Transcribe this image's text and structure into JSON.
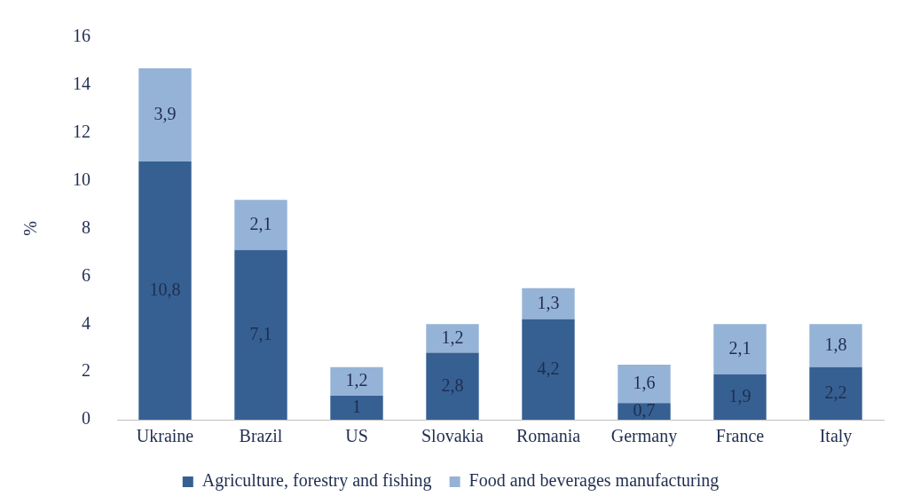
{
  "chart_data": {
    "type": "bar",
    "stacked": true,
    "ylabel": "%",
    "categories": [
      "Ukraine",
      "Brazil",
      "US",
      "Slovakia",
      "Romania",
      "Germany",
      "France",
      "Italy"
    ],
    "series": [
      {
        "name": "Agriculture, forestry and fishing",
        "color": "#366092",
        "values": [
          10.8,
          7.1,
          1,
          2.8,
          4.2,
          0.7,
          1.9,
          2.2
        ],
        "value_labels": [
          "10,8",
          "7,1",
          "1",
          "2,8",
          "4,2",
          "0,7",
          "1,9",
          "2,2"
        ]
      },
      {
        "name": "Food and beverages manufacturing",
        "color": "#95b3d7",
        "values": [
          3.9,
          2.1,
          1.2,
          1.2,
          1.3,
          1.6,
          2.1,
          1.8
        ],
        "value_labels": [
          "3,9",
          "2,1",
          "1,2",
          "1,2",
          "1,3",
          "1,6",
          "2,1",
          "1,8"
        ]
      }
    ],
    "ylim": [
      0,
      16
    ],
    "yticks": [
      0,
      2,
      4,
      6,
      8,
      10,
      12,
      14,
      16
    ],
    "grid": false,
    "legend": "bottom"
  }
}
